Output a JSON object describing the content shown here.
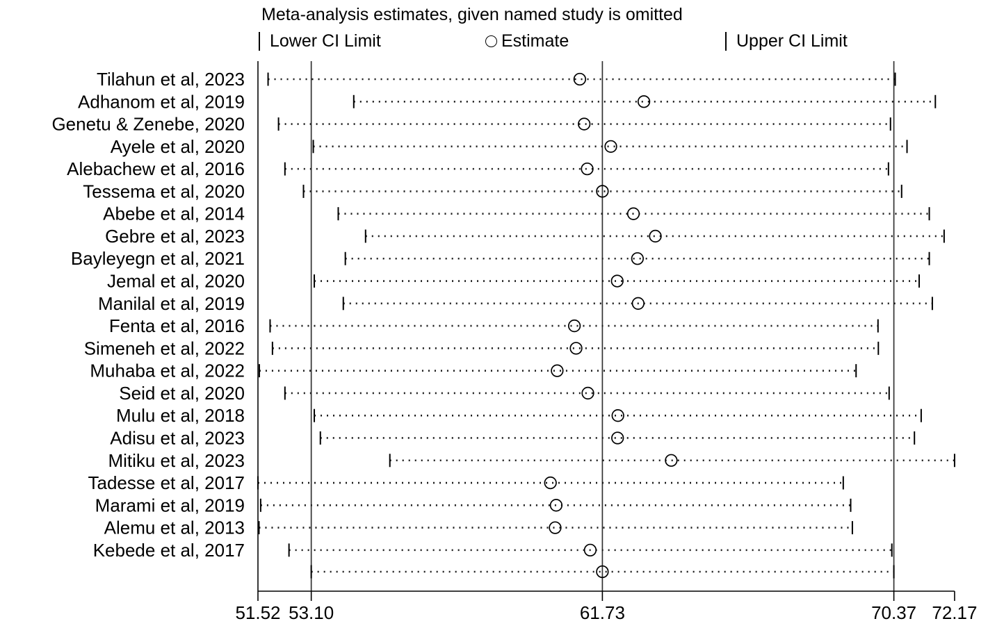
{
  "chart_data": {
    "type": "forest",
    "title": "Meta-analysis estimates, given named study is omitted",
    "legend": {
      "lower": "Lower CI Limit",
      "estimate": "Estimate",
      "upper": "Upper CI Limit"
    },
    "legend_position": "top",
    "marker": "open-circle",
    "grid": false,
    "xlim": [
      51.52,
      72.17
    ],
    "x_ticks": [
      "51.52",
      "53.10",
      "61.73",
      "70.37",
      "72.17"
    ],
    "reference_lines": [
      53.1,
      61.73,
      70.37
    ],
    "studies": [
      {
        "label": "Tilahun et al, 2023",
        "lower": 51.82,
        "estimate": 61.06,
        "upper": 70.41
      },
      {
        "label": "Adhanom et al, 2019",
        "lower": 54.36,
        "estimate": 62.96,
        "upper": 71.6
      },
      {
        "label": "Genetu & Zenebe, 2020",
        "lower": 52.13,
        "estimate": 61.19,
        "upper": 70.27
      },
      {
        "label": "Ayele et al, 2020",
        "lower": 53.16,
        "estimate": 61.98,
        "upper": 70.76
      },
      {
        "label": "Alebachew et al, 2016",
        "lower": 52.32,
        "estimate": 61.28,
        "upper": 70.21
      },
      {
        "label": "Tessema et al, 2020",
        "lower": 52.87,
        "estimate": 61.73,
        "upper": 70.6
      },
      {
        "label": "Abebe et al, 2014",
        "lower": 53.9,
        "estimate": 62.65,
        "upper": 71.42
      },
      {
        "label": "Gebre et al, 2023",
        "lower": 54.71,
        "estimate": 63.3,
        "upper": 71.86
      },
      {
        "label": "Bayleyegn et al, 2021",
        "lower": 54.11,
        "estimate": 62.77,
        "upper": 71.42
      },
      {
        "label": "Jemal et al, 2020",
        "lower": 53.19,
        "estimate": 62.17,
        "upper": 71.12
      },
      {
        "label": "Manilal et al, 2019",
        "lower": 54.05,
        "estimate": 62.79,
        "upper": 71.51
      },
      {
        "label": "Fenta et al, 2016",
        "lower": 51.88,
        "estimate": 60.9,
        "upper": 69.9
      },
      {
        "label": "Simeneh et al, 2022",
        "lower": 51.95,
        "estimate": 60.95,
        "upper": 69.91
      },
      {
        "label": "Muhaba et al, 2022",
        "lower": 51.56,
        "estimate": 60.39,
        "upper": 69.25
      },
      {
        "label": "Seid et al, 2020",
        "lower": 52.32,
        "estimate": 61.3,
        "upper": 70.23
      },
      {
        "label": "Mulu et al, 2018",
        "lower": 53.19,
        "estimate": 62.19,
        "upper": 71.18
      },
      {
        "label": "Adisu et al, 2023",
        "lower": 53.37,
        "estimate": 62.18,
        "upper": 70.98
      },
      {
        "label": "Mitiku et al, 2023",
        "lower": 55.43,
        "estimate": 63.77,
        "upper": 72.17
      },
      {
        "label": "Tadesse et al, 2017",
        "lower": 51.52,
        "estimate": 60.19,
        "upper": 68.87
      },
      {
        "label": "Marami et al, 2019",
        "lower": 51.6,
        "estimate": 60.36,
        "upper": 69.09
      },
      {
        "label": "Alemu et al, 2013",
        "lower": 51.55,
        "estimate": 60.33,
        "upper": 69.14
      },
      {
        "label": "Kebede et al, 2017",
        "lower": 52.44,
        "estimate": 61.37,
        "upper": 70.31
      }
    ],
    "overall": {
      "label": "",
      "lower": 53.1,
      "estimate": 61.73,
      "upper": 70.37
    }
  }
}
